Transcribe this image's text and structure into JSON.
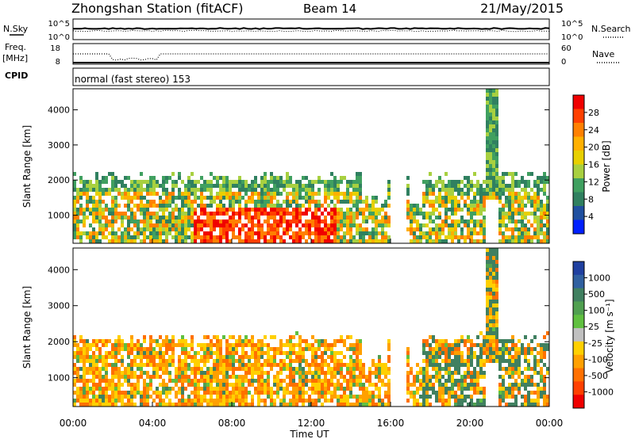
{
  "header": {
    "title": "Zhongshan Station (fitACF)",
    "beam": "Beam 14",
    "date": "21/May/2015"
  },
  "noise_panel": {
    "left_label": "N.Sky",
    "right_label": "N.Search",
    "left_ticks": [
      "10^5",
      "10^0"
    ],
    "right_ticks": [
      "10^5",
      "10^0"
    ]
  },
  "freq_panel": {
    "left_label_1": "Freq.",
    "left_label_2": "[MHz]",
    "right_label": "Nave",
    "left_ticks": [
      "18",
      "8"
    ],
    "right_ticks": [
      "60",
      "0"
    ]
  },
  "cpid_panel": {
    "label": "CPID",
    "text": "normal (fast stereo) 153"
  },
  "chart_data": [
    {
      "type": "heatmap",
      "name": "",
      "ylabel": "Slant Range [km]",
      "xlabel": "",
      "x_ticks": [
        "00:00",
        "04:00",
        "08:00",
        "12:00",
        "16:00",
        "20:00",
        "00:00"
      ],
      "y_ticks": [
        1000,
        2000,
        3000,
        4000
      ],
      "ylim": [
        200,
        4600
      ],
      "colorbar_label": "Power [dB]",
      "colorbar_ticks": [
        "28",
        "24",
        "20",
        "16",
        "12",
        "8",
        "4"
      ],
      "colors": [
        "#f00000",
        "#ff4000",
        "#ff8000",
        "#ffb000",
        "#e8d000",
        "#a8d040",
        "#40a060",
        "#308060",
        "#2050a0",
        "#0020ff"
      ]
    },
    {
      "type": "heatmap",
      "name": "",
      "ylabel": "Slant Range [km]",
      "xlabel": "Time UT",
      "x_ticks": [
        "00:00",
        "04:00",
        "08:00",
        "12:00",
        "16:00",
        "20:00",
        "00:00"
      ],
      "y_ticks": [
        1000,
        2000,
        3000,
        4000
      ],
      "ylim": [
        200,
        4600
      ],
      "colorbar_label": "Velocity [m s⁻¹]",
      "colorbar_ticks": [
        "1000",
        "500",
        "100",
        "25",
        "-25",
        "-100",
        "-500",
        "-1000"
      ],
      "colors": [
        "#2040a0",
        "#3060a0",
        "#408060",
        "#50a050",
        "#60c040",
        "#c0c0c0",
        "#ffd000",
        "#ffa000",
        "#ff7000",
        "#ff4000",
        "#f00000"
      ]
    }
  ]
}
